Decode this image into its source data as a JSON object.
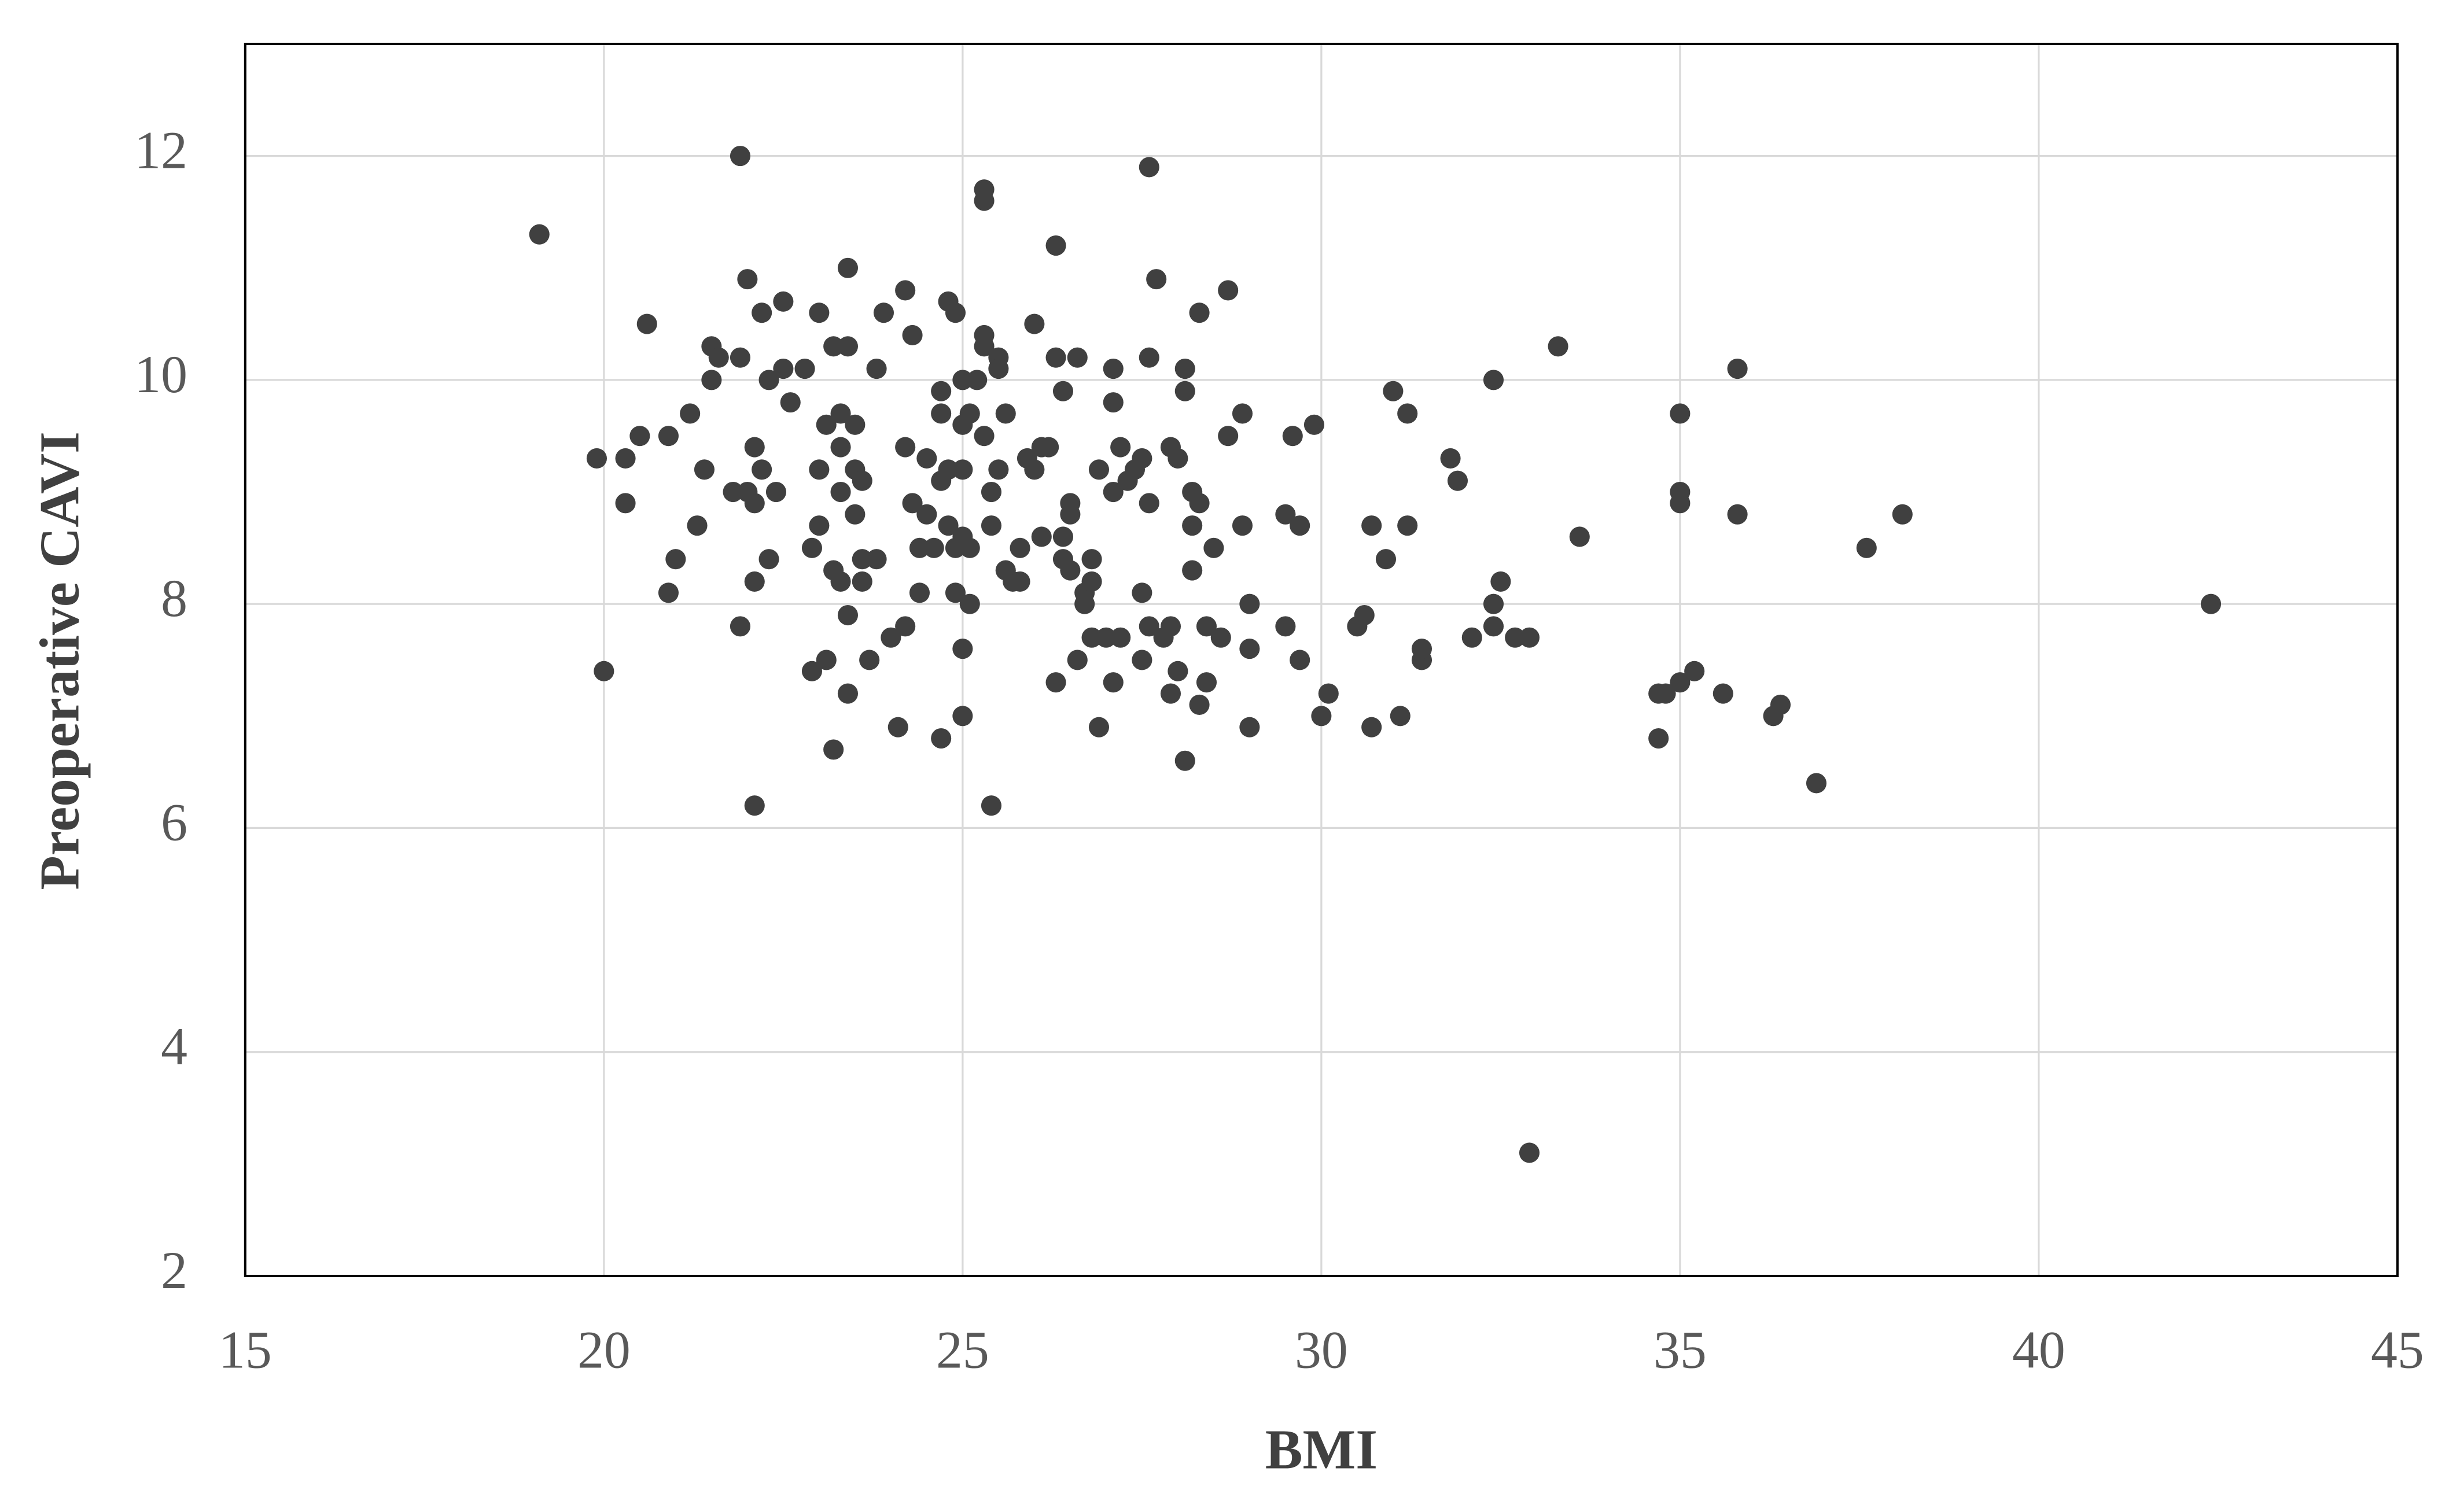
{
  "chart_data": {
    "type": "scatter",
    "x_label": "BMI",
    "y_label": "Preoperative CAVI",
    "color": "#404040",
    "grid": true,
    "xlim": [
      15,
      45
    ],
    "xticks": [
      15,
      20,
      25,
      30,
      35,
      40,
      45
    ],
    "ylim": [
      2,
      13
    ],
    "yticks": [
      2,
      4,
      6,
      8,
      10,
      12
    ],
    "x": [
      19.1,
      19.9,
      20.0,
      20.3,
      20.3,
      20.5,
      20.6,
      20.9,
      20.9,
      21.0,
      21.2,
      21.3,
      21.4,
      21.5,
      21.5,
      21.6,
      21.8,
      21.9,
      21.9,
      21.9,
      22.0,
      22.0,
      22.1,
      22.1,
      22.1,
      22.1,
      22.2,
      22.2,
      22.3,
      22.3,
      22.4,
      22.5,
      22.5,
      22.6,
      22.8,
      22.9,
      22.9,
      23.0,
      23.0,
      23.0,
      23.1,
      23.1,
      23.2,
      23.2,
      23.2,
      23.3,
      23.3,
      23.3,
      23.3,
      23.4,
      23.4,
      23.4,
      23.4,
      23.5,
      23.5,
      23.5,
      23.6,
      23.6,
      23.6,
      23.7,
      23.8,
      23.8,
      23.9,
      24.0,
      24.1,
      24.2,
      24.2,
      24.2,
      24.3,
      24.3,
      24.4,
      24.4,
      24.5,
      24.5,
      24.6,
      24.7,
      24.7,
      24.7,
      24.7,
      24.8,
      24.8,
      24.8,
      24.9,
      24.9,
      24.9,
      25.0,
      25.0,
      25.0,
      25.0,
      25.0,
      25.0,
      25.1,
      25.1,
      25.1,
      25.2,
      25.3,
      25.3,
      25.3,
      25.3,
      25.3,
      25.4,
      25.4,
      25.4,
      25.5,
      25.5,
      25.5,
      25.6,
      25.6,
      25.7,
      25.8,
      25.8,
      25.9,
      26.0,
      26.0,
      26.1,
      26.1,
      26.2,
      26.3,
      26.3,
      26.3,
      26.4,
      26.4,
      26.4,
      26.5,
      26.5,
      26.5,
      26.6,
      26.6,
      26.7,
      26.7,
      26.8,
      26.8,
      26.8,
      26.9,
      26.9,
      27.0,
      27.1,
      27.1,
      27.1,
      27.1,
      27.2,
      27.2,
      27.3,
      27.4,
      27.5,
      27.5,
      27.5,
      27.6,
      27.6,
      27.6,
      27.6,
      27.7,
      27.8,
      27.9,
      27.9,
      27.9,
      28.0,
      28.0,
      28.1,
      28.1,
      28.1,
      28.2,
      28.2,
      28.2,
      28.3,
      28.3,
      28.3,
      28.4,
      28.4,
      28.5,
      28.6,
      28.7,
      28.7,
      28.9,
      28.9,
      29.0,
      29.0,
      29.0,
      29.5,
      29.5,
      29.6,
      29.7,
      29.7,
      29.9,
      30.0,
      30.1,
      30.5,
      30.6,
      30.7,
      30.7,
      30.9,
      31.0,
      31.1,
      31.2,
      31.2,
      31.4,
      31.4,
      31.8,
      31.9,
      32.1,
      32.4,
      32.4,
      32.4,
      32.5,
      32.7,
      32.9,
      32.9,
      33.3,
      33.6,
      34.7,
      34.7,
      34.8,
      35.0,
      35.0,
      35.0,
      35.0,
      35.2,
      35.6,
      35.8,
      35.8,
      36.3,
      36.4,
      36.9,
      37.6,
      38.1,
      42.4
    ],
    "series": [
      {
        "values": [
          11.3,
          9.3,
          7.4,
          9.3,
          8.9,
          9.5,
          10.5,
          8.1,
          9.5,
          8.4,
          9.7,
          8.7,
          9.2,
          10.3,
          10.0,
          10.2,
          9.0,
          12.0,
          7.8,
          10.2,
          9.0,
          10.9,
          9.4,
          6.2,
          8.2,
          8.9,
          9.2,
          10.6,
          8.4,
          10.0,
          9.0,
          10.7,
          10.1,
          9.8,
          10.1,
          7.4,
          8.5,
          10.6,
          9.2,
          8.7,
          7.5,
          9.6,
          6.7,
          10.3,
          8.3,
          9.4,
          9.7,
          9.0,
          8.2,
          7.9,
          10.3,
          7.2,
          11.0,
          8.8,
          9.2,
          9.6,
          8.4,
          9.1,
          8.2,
          7.5,
          8.4,
          10.1,
          10.6,
          7.7,
          6.9,
          9.4,
          10.8,
          7.8,
          10.4,
          8.9,
          8.5,
          8.1,
          8.8,
          9.3,
          8.5,
          9.9,
          9.7,
          6.8,
          9.1,
          9.2,
          8.7,
          10.7,
          8.5,
          8.1,
          10.6,
          9.2,
          7.6,
          9.6,
          8.6,
          7.0,
          10.0,
          8.0,
          9.7,
          8.5,
          10.0,
          10.4,
          11.7,
          11.6,
          9.5,
          10.3,
          9.0,
          6.2,
          8.7,
          10.2,
          9.2,
          10.1,
          8.3,
          9.7,
          8.2,
          8.5,
          8.2,
          9.3,
          10.5,
          9.2,
          8.6,
          9.4,
          9.4,
          11.2,
          7.3,
          10.2,
          8.6,
          9.9,
          8.4,
          8.9,
          8.3,
          8.8,
          10.2,
          7.5,
          8.1,
          8.0,
          8.4,
          8.2,
          7.7,
          6.9,
          9.2,
          7.7,
          7.3,
          9.0,
          10.1,
          9.8,
          9.4,
          7.7,
          9.1,
          9.2,
          8.1,
          7.5,
          9.3,
          10.2,
          8.9,
          11.9,
          7.8,
          10.9,
          7.7,
          7.2,
          7.8,
          9.4,
          7.4,
          9.3,
          6.6,
          10.1,
          9.9,
          9.0,
          8.3,
          8.7,
          10.6,
          8.9,
          7.1,
          7.3,
          7.8,
          8.5,
          7.7,
          10.8,
          9.5,
          8.7,
          9.7,
          6.9,
          7.6,
          8.0,
          7.8,
          8.8,
          9.5,
          8.7,
          7.5,
          9.6,
          7.0,
          7.2,
          7.8,
          7.9,
          8.7,
          6.9,
          8.4,
          9.9,
          7.0,
          9.7,
          8.7,
          7.5,
          7.6,
          9.3,
          9.1,
          7.7,
          8.0,
          7.8,
          10.0,
          8.2,
          7.7,
          3.1,
          7.7,
          10.3,
          8.6,
          6.8,
          7.2,
          7.2,
          7.3,
          9.0,
          8.9,
          9.7,
          7.4,
          7.2,
          10.1,
          8.8,
          7.0,
          7.1,
          6.4,
          8.5,
          8.8,
          8.0
        ]
      }
    ]
  }
}
